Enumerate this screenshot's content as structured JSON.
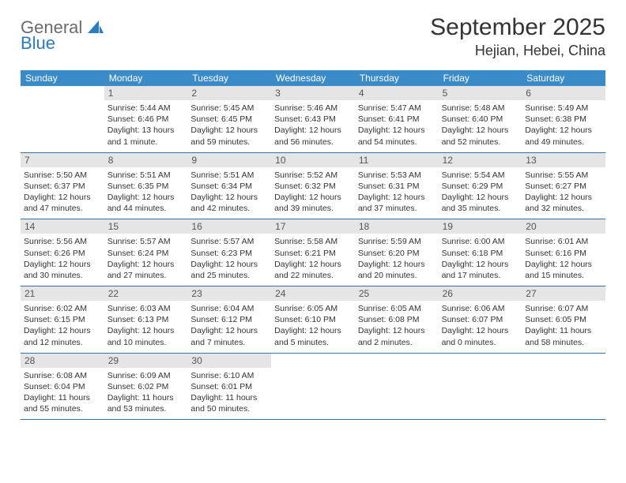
{
  "logo": {
    "line1": "General",
    "line2": "Blue"
  },
  "header": {
    "month": "September 2025",
    "location": "Hejian, Hebei, China"
  },
  "weekdays": [
    "Sunday",
    "Monday",
    "Tuesday",
    "Wednesday",
    "Thursday",
    "Friday",
    "Saturday"
  ],
  "colors": {
    "header_bg": "#3b8bc9",
    "row_border": "#3b6f9e",
    "daynum_bg": "#e5e5e5",
    "text": "#333333"
  },
  "weeks": [
    [
      {
        "n": "",
        "sunrise": "",
        "sunset": "",
        "daylight": ""
      },
      {
        "n": "1",
        "sunrise": "Sunrise: 5:44 AM",
        "sunset": "Sunset: 6:46 PM",
        "daylight": "Daylight: 13 hours and 1 minute."
      },
      {
        "n": "2",
        "sunrise": "Sunrise: 5:45 AM",
        "sunset": "Sunset: 6:45 PM",
        "daylight": "Daylight: 12 hours and 59 minutes."
      },
      {
        "n": "3",
        "sunrise": "Sunrise: 5:46 AM",
        "sunset": "Sunset: 6:43 PM",
        "daylight": "Daylight: 12 hours and 56 minutes."
      },
      {
        "n": "4",
        "sunrise": "Sunrise: 5:47 AM",
        "sunset": "Sunset: 6:41 PM",
        "daylight": "Daylight: 12 hours and 54 minutes."
      },
      {
        "n": "5",
        "sunrise": "Sunrise: 5:48 AM",
        "sunset": "Sunset: 6:40 PM",
        "daylight": "Daylight: 12 hours and 52 minutes."
      },
      {
        "n": "6",
        "sunrise": "Sunrise: 5:49 AM",
        "sunset": "Sunset: 6:38 PM",
        "daylight": "Daylight: 12 hours and 49 minutes."
      }
    ],
    [
      {
        "n": "7",
        "sunrise": "Sunrise: 5:50 AM",
        "sunset": "Sunset: 6:37 PM",
        "daylight": "Daylight: 12 hours and 47 minutes."
      },
      {
        "n": "8",
        "sunrise": "Sunrise: 5:51 AM",
        "sunset": "Sunset: 6:35 PM",
        "daylight": "Daylight: 12 hours and 44 minutes."
      },
      {
        "n": "9",
        "sunrise": "Sunrise: 5:51 AM",
        "sunset": "Sunset: 6:34 PM",
        "daylight": "Daylight: 12 hours and 42 minutes."
      },
      {
        "n": "10",
        "sunrise": "Sunrise: 5:52 AM",
        "sunset": "Sunset: 6:32 PM",
        "daylight": "Daylight: 12 hours and 39 minutes."
      },
      {
        "n": "11",
        "sunrise": "Sunrise: 5:53 AM",
        "sunset": "Sunset: 6:31 PM",
        "daylight": "Daylight: 12 hours and 37 minutes."
      },
      {
        "n": "12",
        "sunrise": "Sunrise: 5:54 AM",
        "sunset": "Sunset: 6:29 PM",
        "daylight": "Daylight: 12 hours and 35 minutes."
      },
      {
        "n": "13",
        "sunrise": "Sunrise: 5:55 AM",
        "sunset": "Sunset: 6:27 PM",
        "daylight": "Daylight: 12 hours and 32 minutes."
      }
    ],
    [
      {
        "n": "14",
        "sunrise": "Sunrise: 5:56 AM",
        "sunset": "Sunset: 6:26 PM",
        "daylight": "Daylight: 12 hours and 30 minutes."
      },
      {
        "n": "15",
        "sunrise": "Sunrise: 5:57 AM",
        "sunset": "Sunset: 6:24 PM",
        "daylight": "Daylight: 12 hours and 27 minutes."
      },
      {
        "n": "16",
        "sunrise": "Sunrise: 5:57 AM",
        "sunset": "Sunset: 6:23 PM",
        "daylight": "Daylight: 12 hours and 25 minutes."
      },
      {
        "n": "17",
        "sunrise": "Sunrise: 5:58 AM",
        "sunset": "Sunset: 6:21 PM",
        "daylight": "Daylight: 12 hours and 22 minutes."
      },
      {
        "n": "18",
        "sunrise": "Sunrise: 5:59 AM",
        "sunset": "Sunset: 6:20 PM",
        "daylight": "Daylight: 12 hours and 20 minutes."
      },
      {
        "n": "19",
        "sunrise": "Sunrise: 6:00 AM",
        "sunset": "Sunset: 6:18 PM",
        "daylight": "Daylight: 12 hours and 17 minutes."
      },
      {
        "n": "20",
        "sunrise": "Sunrise: 6:01 AM",
        "sunset": "Sunset: 6:16 PM",
        "daylight": "Daylight: 12 hours and 15 minutes."
      }
    ],
    [
      {
        "n": "21",
        "sunrise": "Sunrise: 6:02 AM",
        "sunset": "Sunset: 6:15 PM",
        "daylight": "Daylight: 12 hours and 12 minutes."
      },
      {
        "n": "22",
        "sunrise": "Sunrise: 6:03 AM",
        "sunset": "Sunset: 6:13 PM",
        "daylight": "Daylight: 12 hours and 10 minutes."
      },
      {
        "n": "23",
        "sunrise": "Sunrise: 6:04 AM",
        "sunset": "Sunset: 6:12 PM",
        "daylight": "Daylight: 12 hours and 7 minutes."
      },
      {
        "n": "24",
        "sunrise": "Sunrise: 6:05 AM",
        "sunset": "Sunset: 6:10 PM",
        "daylight": "Daylight: 12 hours and 5 minutes."
      },
      {
        "n": "25",
        "sunrise": "Sunrise: 6:05 AM",
        "sunset": "Sunset: 6:08 PM",
        "daylight": "Daylight: 12 hours and 2 minutes."
      },
      {
        "n": "26",
        "sunrise": "Sunrise: 6:06 AM",
        "sunset": "Sunset: 6:07 PM",
        "daylight": "Daylight: 12 hours and 0 minutes."
      },
      {
        "n": "27",
        "sunrise": "Sunrise: 6:07 AM",
        "sunset": "Sunset: 6:05 PM",
        "daylight": "Daylight: 11 hours and 58 minutes."
      }
    ],
    [
      {
        "n": "28",
        "sunrise": "Sunrise: 6:08 AM",
        "sunset": "Sunset: 6:04 PM",
        "daylight": "Daylight: 11 hours and 55 minutes."
      },
      {
        "n": "29",
        "sunrise": "Sunrise: 6:09 AM",
        "sunset": "Sunset: 6:02 PM",
        "daylight": "Daylight: 11 hours and 53 minutes."
      },
      {
        "n": "30",
        "sunrise": "Sunrise: 6:10 AM",
        "sunset": "Sunset: 6:01 PM",
        "daylight": "Daylight: 11 hours and 50 minutes."
      },
      {
        "n": "",
        "sunrise": "",
        "sunset": "",
        "daylight": ""
      },
      {
        "n": "",
        "sunrise": "",
        "sunset": "",
        "daylight": ""
      },
      {
        "n": "",
        "sunrise": "",
        "sunset": "",
        "daylight": ""
      },
      {
        "n": "",
        "sunrise": "",
        "sunset": "",
        "daylight": ""
      }
    ]
  ]
}
